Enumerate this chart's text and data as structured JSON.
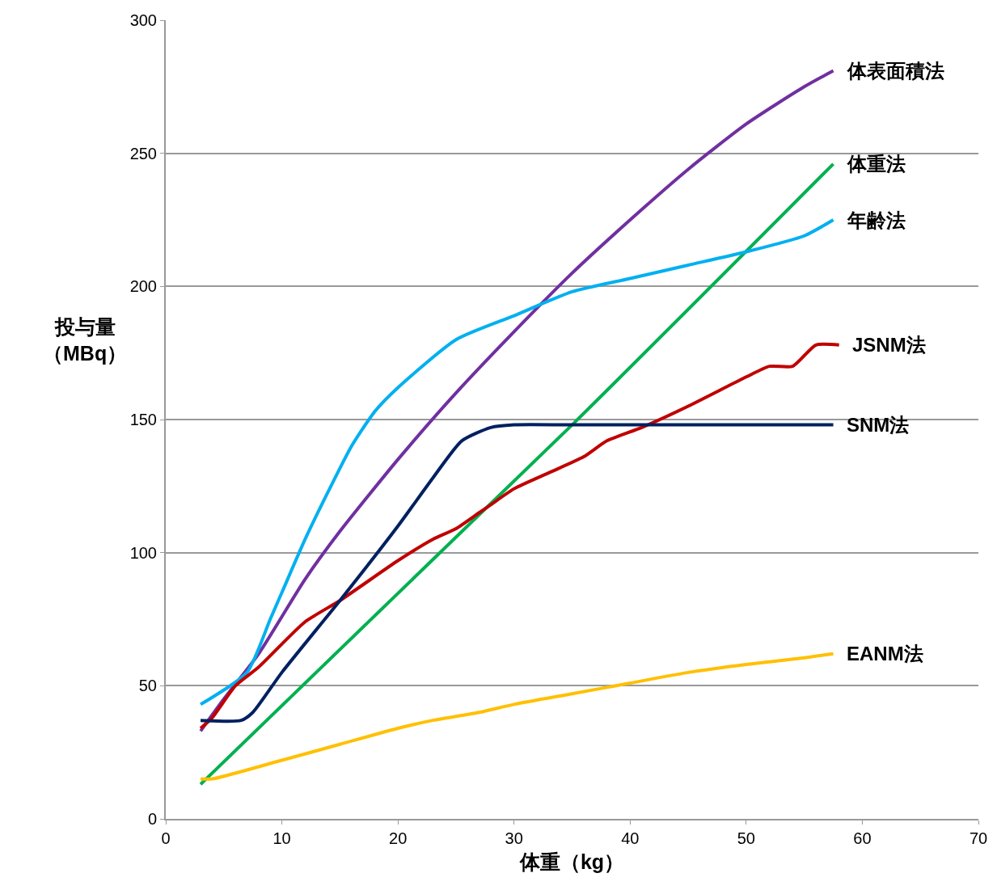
{
  "chart_data": {
    "type": "line",
    "xlabel": "体重（kg）",
    "ylabel": "投与量（MBq）",
    "xlim": [
      0,
      70
    ],
    "xticks": [
      0,
      10,
      20,
      30,
      40,
      50,
      60,
      70
    ],
    "ylim": [
      0,
      300
    ],
    "yticks": [
      0,
      50,
      100,
      150,
      200,
      250,
      300
    ],
    "grid": "y",
    "legend": false,
    "marker": "none",
    "line_style": "solid",
    "series": [
      {
        "name": "体表面積法",
        "color": "#7030a0",
        "x": [
          3,
          5,
          8,
          12,
          15,
          20,
          25,
          30,
          35,
          40,
          45,
          50,
          55,
          57.5
        ],
        "values": [
          33,
          45,
          62,
          90,
          108,
          135,
          160,
          183,
          205,
          225,
          244,
          261,
          275,
          281
        ]
      },
      {
        "name": "体重法",
        "color": "#00b050",
        "x": [
          3,
          35,
          57.5
        ],
        "values": [
          13,
          148,
          246
        ]
      },
      {
        "name": "年齢法",
        "color": "#00b0f0",
        "x": [
          3,
          7,
          9,
          10,
          12,
          14,
          16,
          18,
          20,
          25,
          30,
          35,
          40,
          45,
          50,
          55,
          57.5
        ],
        "values": [
          43,
          55,
          75,
          85,
          105,
          123,
          140,
          153,
          162,
          180,
          189,
          198,
          203,
          208,
          213,
          219,
          225
        ]
      },
      {
        "name": "JSNM法",
        "color": "#c00000",
        "x": [
          3,
          4,
          6,
          8,
          12,
          15,
          20,
          23,
          25,
          27,
          28,
          30,
          33,
          36,
          38,
          41,
          45,
          50,
          52,
          54,
          56,
          58
        ],
        "values": [
          34,
          38,
          50,
          57,
          74,
          82,
          97,
          105,
          109,
          115,
          118,
          124,
          130,
          136,
          142,
          147,
          155,
          166,
          170,
          170,
          178,
          178
        ]
      },
      {
        "name": "SNM法",
        "color": "#002060",
        "x": [
          3,
          6.5,
          7.5,
          10,
          15,
          20,
          23,
          25.5,
          28,
          30,
          35,
          57.5
        ],
        "values": [
          37,
          37,
          40,
          55,
          82,
          110,
          128,
          142,
          147,
          148,
          148,
          148
        ]
      },
      {
        "name": "EANM法",
        "color": "#ffc000",
        "x": [
          3,
          4,
          10,
          15,
          20,
          23,
          27,
          30,
          35,
          40,
          45,
          50,
          55,
          57.5
        ],
        "values": [
          15,
          15,
          22,
          28,
          34,
          37,
          40,
          43,
          47,
          51,
          55,
          58,
          60.5,
          62
        ]
      }
    ]
  }
}
